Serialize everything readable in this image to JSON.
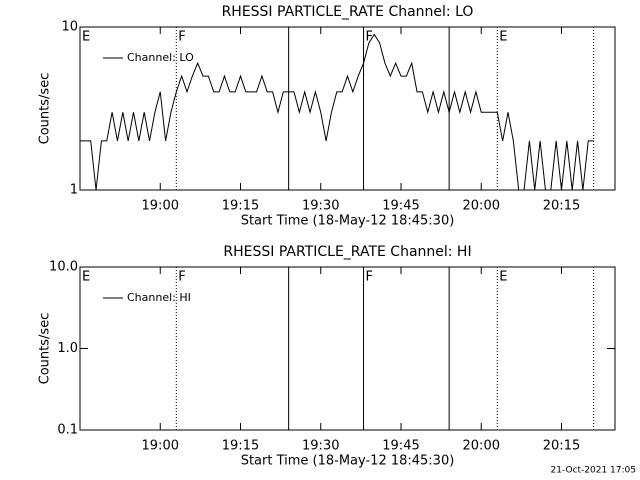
{
  "chart_data": [
    {
      "type": "line",
      "title": "RHESSI PARTICLE_RATE Channel: LO",
      "xlabel": "Start Time (18-May-12 18:45:30)",
      "ylabel": "Counts/sec",
      "xlim": [
        "18:45",
        "20:25"
      ],
      "xticks": [
        "19:00",
        "19:15",
        "19:30",
        "19:45",
        "20:00",
        "20:15"
      ],
      "ylim": [
        1,
        10
      ],
      "yticks": [
        1,
        10
      ],
      "log_y": true,
      "markers": [
        {
          "x": "19:03",
          "style": "dotted"
        },
        {
          "x": "19:24",
          "style": "solid"
        },
        {
          "x": "19:38",
          "style": "solid"
        },
        {
          "x": "19:54",
          "style": "solid"
        },
        {
          "x": "20:03",
          "style": "dotted"
        },
        {
          "x": "20:21",
          "style": "dotted"
        }
      ],
      "flags": [
        {
          "x": "18:45",
          "label": "E"
        },
        {
          "x": "19:03",
          "label": "F"
        },
        {
          "x": "19:38",
          "label": "F"
        },
        {
          "x": "20:03",
          "label": "E"
        }
      ],
      "x": [
        "18:45",
        "18:46",
        "18:47",
        "18:48",
        "18:49",
        "18:50",
        "18:51",
        "18:52",
        "18:53",
        "18:54",
        "18:55",
        "18:56",
        "18:57",
        "18:58",
        "18:59",
        "19:00",
        "19:01",
        "19:02",
        "19:03",
        "19:04",
        "19:05",
        "19:06",
        "19:07",
        "19:08",
        "19:09",
        "19:10",
        "19:11",
        "19:12",
        "19:13",
        "19:14",
        "19:15",
        "19:16",
        "19:17",
        "19:18",
        "19:19",
        "19:20",
        "19:21",
        "19:22",
        "19:23",
        "19:24",
        "19:25",
        "19:26",
        "19:27",
        "19:28",
        "19:29",
        "19:30",
        "19:31",
        "19:32",
        "19:33",
        "19:34",
        "19:35",
        "19:36",
        "19:37",
        "19:38",
        "19:39",
        "19:40",
        "19:41",
        "19:42",
        "19:43",
        "19:44",
        "19:45",
        "19:46",
        "19:47",
        "19:48",
        "19:49",
        "19:50",
        "19:51",
        "19:52",
        "19:53",
        "19:54",
        "19:55",
        "19:56",
        "19:57",
        "19:58",
        "19:59",
        "20:00",
        "20:01",
        "20:02",
        "20:03",
        "20:04",
        "20:05",
        "20:06",
        "20:07",
        "20:08",
        "20:09",
        "20:10",
        "20:11",
        "20:12",
        "20:13",
        "20:14",
        "20:15",
        "20:16",
        "20:17",
        "20:18",
        "20:19",
        "20:20",
        "20:21"
      ],
      "series": [
        {
          "name": "Channel: LO",
          "color": "#000000",
          "values": [
            2,
            2,
            2,
            1,
            2,
            2,
            3,
            2,
            3,
            2,
            3,
            2,
            3,
            2,
            3,
            4,
            2,
            3,
            4,
            5,
            4,
            5,
            6,
            5,
            5,
            4,
            4,
            5,
            4,
            4,
            5,
            4,
            4,
            4,
            5,
            4,
            4,
            3,
            4,
            4,
            4,
            3,
            4,
            3,
            4,
            3,
            2,
            3,
            4,
            4,
            5,
            4,
            5,
            6,
            8,
            9,
            8,
            6,
            5,
            6,
            5,
            5,
            6,
            4,
            4,
            3,
            4,
            3,
            4,
            3,
            4,
            3,
            4,
            3,
            4,
            3,
            3,
            3,
            3,
            2,
            3,
            2,
            1,
            1,
            2,
            1,
            2,
            1,
            1,
            2,
            1,
            2,
            1,
            2,
            1,
            2,
            2
          ]
        }
      ]
    },
    {
      "type": "line",
      "title": "RHESSI PARTICLE_RATE Channel: HI",
      "xlabel": "Start Time (18-May-12 18:45:30)",
      "ylabel": "Counts/sec",
      "xlim": [
        "18:45",
        "20:25"
      ],
      "xticks": [
        "19:00",
        "19:15",
        "19:30",
        "19:45",
        "20:00",
        "20:15"
      ],
      "ylim": [
        0.1,
        10
      ],
      "yticks": [
        0.1,
        {
          "value": 1,
          "label": "1.0"
        },
        {
          "value": 10,
          "label": "10.0"
        }
      ],
      "log_y": true,
      "markers": [
        {
          "x": "19:03",
          "style": "dotted"
        },
        {
          "x": "19:24",
          "style": "solid"
        },
        {
          "x": "19:38",
          "style": "solid"
        },
        {
          "x": "19:54",
          "style": "solid"
        },
        {
          "x": "20:03",
          "style": "dotted"
        },
        {
          "x": "20:21",
          "style": "dotted"
        }
      ],
      "flags": [
        {
          "x": "18:45",
          "label": "E"
        },
        {
          "x": "19:03",
          "label": "F"
        },
        {
          "x": "19:38",
          "label": "F"
        },
        {
          "x": "20:03",
          "label": "E"
        }
      ],
      "x": [],
      "series": [
        {
          "name": "Channel: HI",
          "color": "#000000",
          "values": []
        }
      ]
    }
  ],
  "footer": "21-Oct-2021 17:05"
}
